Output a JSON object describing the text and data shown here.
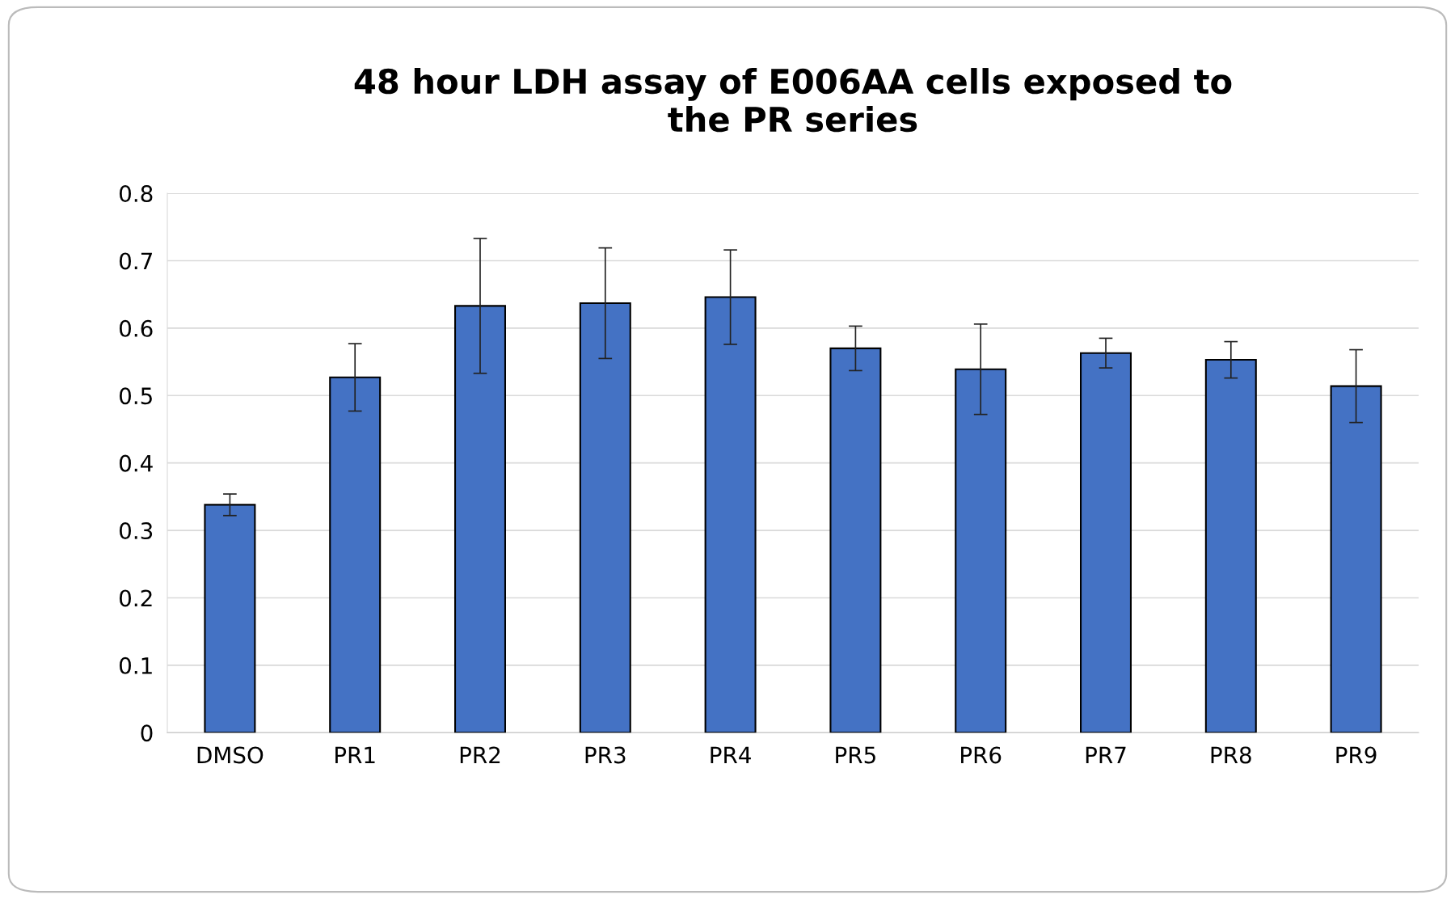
{
  "chart_data": {
    "type": "bar",
    "title": "48 hour LDH assay of E006AA cells exposed to\nthe PR series",
    "categories": [
      "DMSO",
      "PR1",
      "PR2",
      "PR3",
      "PR4",
      "PR5",
      "PR6",
      "PR7",
      "PR8",
      "PR9"
    ],
    "values": [
      0.338,
      0.527,
      0.633,
      0.637,
      0.646,
      0.57,
      0.539,
      0.563,
      0.553,
      0.514
    ],
    "errors": [
      0.016,
      0.05,
      0.1,
      0.082,
      0.07,
      0.033,
      0.067,
      0.022,
      0.027,
      0.054
    ],
    "color": "#4472c4",
    "ylim": [
      0,
      0.8
    ],
    "yticks": [
      {
        "value": 0,
        "label": "0"
      },
      0.1,
      0.2,
      0.3,
      0.4,
      0.5,
      0.6,
      0.7,
      0.8
    ],
    "grid": "y",
    "legend": false
  }
}
